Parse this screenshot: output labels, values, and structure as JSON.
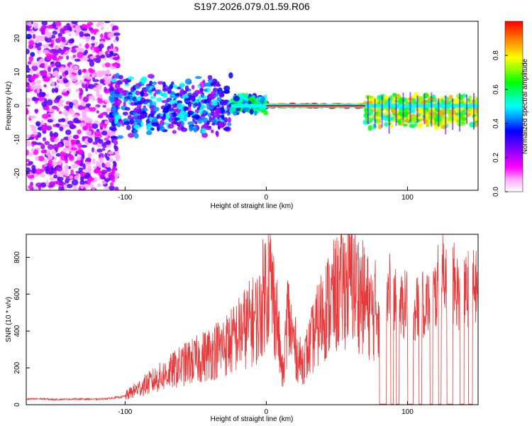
{
  "figure": {
    "title": "S197.2026.079.01.59.R06"
  },
  "chart_data": [
    {
      "type": "heatmap",
      "title": "S197.2026.079.01.59.R06",
      "xlabel": "Height of straight line (km)",
      "ylabel": "Frequency (Hz)",
      "xlim": [
        -170,
        150
      ],
      "ylim": [
        -25,
        25
      ],
      "x_ticks": [
        -100,
        0,
        100
      ],
      "y_ticks": [
        -20,
        -10,
        0,
        10,
        20
      ],
      "x_tick_labels": [
        "-100",
        "0",
        "100"
      ],
      "y_tick_labels": [
        "-20",
        "-10",
        "0",
        "10",
        "20"
      ],
      "grid": false,
      "features": [
        {
          "name": "diffuse-scatter",
          "x_range": [
            -170,
            -105
          ],
          "freq_range": [
            -25,
            25
          ],
          "intensity": 0.15
        },
        {
          "name": "broad-band",
          "x_range": [
            -110,
            -25
          ],
          "freq_range": [
            -8,
            8
          ],
          "intensity": 0.35
        },
        {
          "name": "transition-band",
          "x_range": [
            -25,
            0
          ],
          "freq_range": [
            -2,
            3
          ],
          "intensity": 0.5
        },
        {
          "name": "narrow-carrier",
          "x_range": [
            0,
            70
          ],
          "freq_range": [
            -0.5,
            0.5
          ],
          "intensity": 0.95
        },
        {
          "name": "carrier-with-spikes",
          "x_range": [
            70,
            150
          ],
          "freq_range": [
            -6,
            3
          ],
          "intensity": 0.7
        }
      ],
      "colorbar": {
        "label": "Normalized spectral amplitude",
        "range": [
          0,
          1
        ],
        "ticks": [
          0.0,
          0.2,
          0.4,
          0.6,
          0.8
        ],
        "tick_labels": [
          "0.0",
          "0.2",
          "0.4",
          "0.6",
          "0.8"
        ],
        "colors": [
          "#ffffff",
          "#ffaaff",
          "#ff00ff",
          "#aa00ff",
          "#5500ff",
          "#0000ff",
          "#0088ff",
          "#00ffff",
          "#00ff88",
          "#00ff00",
          "#88ff00",
          "#ffff00",
          "#ffaa00",
          "#ff5500",
          "#ff0000"
        ]
      }
    },
    {
      "type": "line",
      "title": "",
      "xlabel": "Height of straight line (km)",
      "ylabel": "SNR (10 * v/v)",
      "xlim": [
        -170,
        150
      ],
      "ylim": [
        0,
        925
      ],
      "x_ticks": [
        -100,
        0,
        100
      ],
      "y_ticks": [
        0,
        200,
        400,
        600,
        800
      ],
      "x_tick_labels": [
        "-100",
        "0",
        "100"
      ],
      "y_tick_labels": [
        "0",
        "200",
        "400",
        "600",
        "800"
      ],
      "grid": false,
      "series": [
        {
          "name": "SNR",
          "color": "#e8393a",
          "x": [
            -170,
            -160,
            -150,
            -140,
            -130,
            -120,
            -110,
            -100,
            -95,
            -90,
            -85,
            -80,
            -75,
            -70,
            -65,
            -60,
            -55,
            -50,
            -45,
            -40,
            -35,
            -30,
            -25,
            -20,
            -15,
            -10,
            -5,
            -2,
            0,
            2,
            5,
            8,
            10,
            12,
            15,
            18,
            20,
            22,
            25,
            28,
            30,
            35,
            40,
            45,
            50,
            55,
            60,
            62,
            65,
            70,
            75,
            78,
            80,
            85,
            88,
            90,
            95,
            100,
            105,
            110,
            115,
            120,
            125,
            130,
            135,
            140,
            145,
            150
          ],
          "values": [
            30,
            32,
            28,
            30,
            31,
            29,
            35,
            45,
            70,
            90,
            110,
            130,
            150,
            170,
            190,
            210,
            230,
            240,
            260,
            280,
            300,
            320,
            340,
            380,
            420,
            450,
            480,
            600,
            650,
            700,
            580,
            450,
            250,
            150,
            500,
            380,
            330,
            260,
            230,
            260,
            300,
            400,
            500,
            550,
            600,
            650,
            700,
            660,
            620,
            560,
            500,
            520,
            540,
            600,
            700,
            560,
            520,
            560,
            520,
            540,
            560,
            600,
            740,
            700,
            620,
            580,
            680,
            600
          ],
          "dropouts": [
            {
              "x0": 80,
              "x1": 85
            },
            {
              "x0": 88,
              "x1": 90
            },
            {
              "x0": 92,
              "x1": 94
            },
            {
              "x0": 100,
              "x1": 104
            },
            {
              "x0": 108,
              "x1": 110
            },
            {
              "x0": 116,
              "x1": 118
            },
            {
              "x0": 122,
              "x1": 124
            },
            {
              "x0": 128,
              "x1": 132
            },
            {
              "x0": 137,
              "x1": 140
            },
            {
              "x0": 143,
              "x1": 146
            }
          ]
        }
      ]
    }
  ]
}
